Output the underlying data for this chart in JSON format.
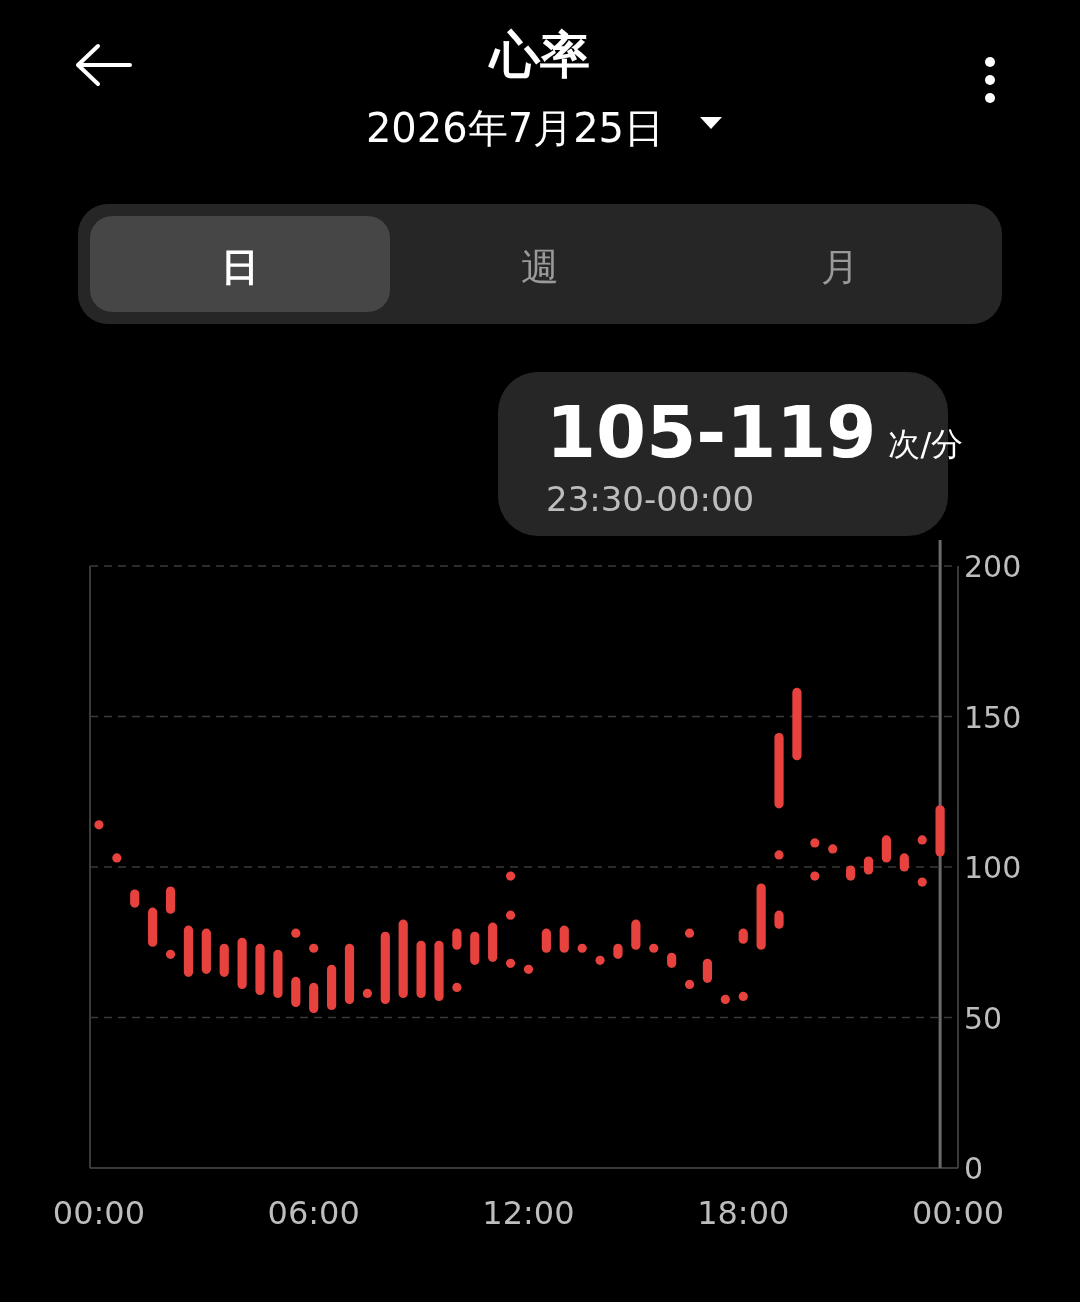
{
  "chart_data": {
    "type": "bar",
    "title": "心率",
    "subtitle": "2026年7月25日",
    "annotations": [
      "日",
      "週",
      "月",
      "105-119",
      "次/分",
      "23:30-00:00"
    ],
    "series": [
      {
        "color": "#e8423f",
        "x": [
          1,
          1.5,
          2,
          2.5,
          3,
          3.5,
          4,
          4.5,
          5,
          5.5,
          6,
          6.5,
          7,
          8,
          8.5,
          9,
          9.5,
          10,
          10.5,
          11,
          12.5,
          13,
          14.5,
          15,
          16,
          17,
          18,
          18.5,
          19,
          19.5,
          21,
          21.5,
          22,
          22.5,
          23.5
        ],
        "base": [
          88,
          75,
          86,
          65,
          66,
          65,
          61,
          59,
          58,
          55,
          53,
          54,
          56,
          56,
          58,
          58,
          57,
          74,
          69,
          70,
          73,
          73,
          71,
          74,
          68,
          63,
          76,
          74,
          121,
          137,
          97,
          99,
          103,
          100,
          105
        ],
        "values": [
          3,
          10,
          6,
          14,
          12,
          8,
          14,
          14,
          13,
          7,
          7,
          12,
          17,
          21,
          23,
          16,
          17,
          4,
          8,
          10,
          5,
          6,
          2,
          7,
          2,
          5,
          2,
          19,
          22,
          21,
          2,
          3,
          6,
          3,
          14
        ]
      },
      {
        "color": "#e8423f",
        "x": [
          19
        ],
        "base": [
          81
        ],
        "values": [
          3
        ]
      },
      {
        "type": "scatter",
        "color": "#e8423f",
        "x": [
          0,
          0.5,
          2,
          5.5,
          6,
          7.5,
          10,
          11.5,
          11.5,
          11.5,
          12,
          13.5,
          14,
          15.5,
          16.5,
          16.5,
          17.5,
          18,
          19,
          20,
          20,
          20.5,
          23,
          23
        ],
        "values": [
          114,
          103,
          71,
          78,
          73,
          58,
          60,
          97,
          84,
          68,
          66,
          73,
          69,
          73,
          78,
          61,
          56,
          57,
          104,
          108,
          97,
          106,
          109,
          95
        ]
      }
    ],
    "marker": "circle",
    "xlim": [
      -0.25,
      24
    ],
    "xticks": [
      {
        "value": 0,
        "label": "00:00"
      },
      {
        "value": 6,
        "label": "06:00"
      },
      {
        "value": 12,
        "label": "12:00"
      },
      {
        "value": 18,
        "label": "18:00"
      },
      {
        "value": 24,
        "label": "00:00"
      }
    ],
    "ylim": [
      0,
      200
    ],
    "yticks": [
      0,
      50,
      100,
      150,
      200
    ],
    "grid": "y",
    "ref_lines": [
      {
        "axis": "x",
        "value": 23.5,
        "color": "#6a6a6a"
      }
    ]
  }
}
